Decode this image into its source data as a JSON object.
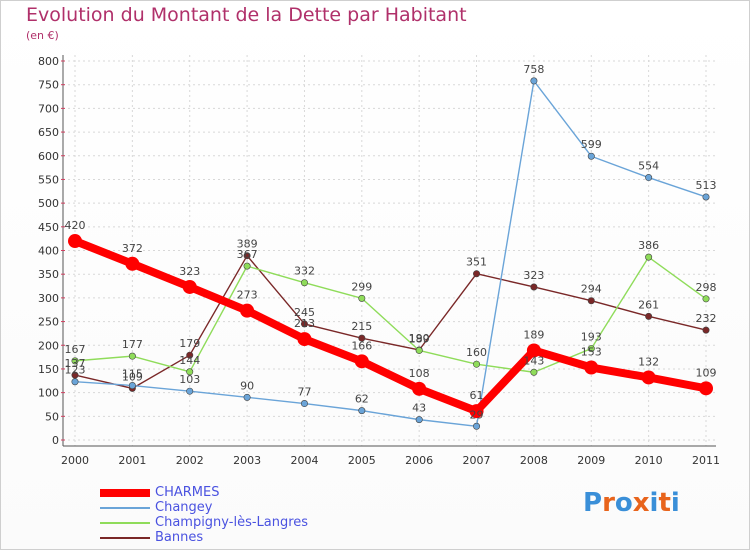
{
  "chart_data": {
    "type": "line",
    "title": "Evolution du Montant de la Dette par Habitant",
    "subtitle": "(en €)",
    "xlabel": "",
    "ylabel": "",
    "x": [
      "2000",
      "2001",
      "2002",
      "2003",
      "2004",
      "2005",
      "2006",
      "2007",
      "2008",
      "2009",
      "2010",
      "2011"
    ],
    "ylim": [
      0,
      800
    ],
    "yticks": [
      0,
      50,
      100,
      150,
      200,
      250,
      300,
      350,
      400,
      450,
      500,
      550,
      600,
      650,
      700,
      750,
      800
    ],
    "grid": true,
    "legend": "bottom-left",
    "series": [
      {
        "name": "CHARMES",
        "color": "#ff0000",
        "values": [
          420,
          372,
          323,
          273,
          213,
          166,
          108,
          61,
          189,
          153,
          132,
          109
        ]
      },
      {
        "name": "Changey",
        "color": "#6aa4d8",
        "values": [
          123,
          115,
          103,
          90,
          77,
          62,
          43,
          29,
          758,
          599,
          554,
          513
        ]
      },
      {
        "name": "Champigny-lès-Langres",
        "color": "#8fdc5a",
        "values": [
          167,
          177,
          144,
          367,
          332,
          299,
          189,
          160,
          143,
          193,
          386,
          298
        ]
      },
      {
        "name": "Bannes",
        "color": "#7a2828",
        "values": [
          137,
          109,
          179,
          389,
          245,
          215,
          190,
          351,
          323,
          294,
          261,
          232
        ]
      }
    ]
  },
  "logo": {
    "text": "Proxiti",
    "colors": [
      "#3a8fd8",
      "#e8641c",
      "#3a8fd8",
      "#e8641c",
      "#3a8fd8",
      "#e8641c",
      "#3a8fd8"
    ]
  }
}
